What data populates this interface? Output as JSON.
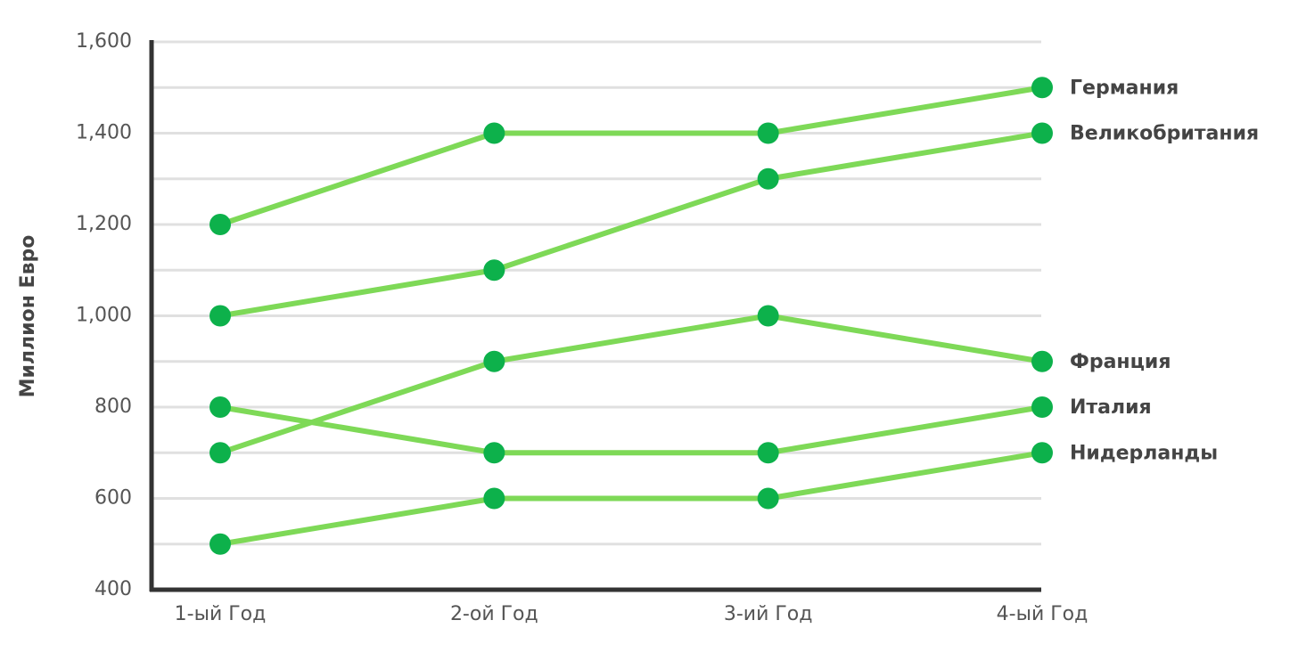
{
  "chart_data": {
    "type": "line",
    "y_label": "Миллион Евро",
    "categories": [
      "1-ый Год",
      "2-ой Год",
      "3-ий Год",
      "4-ый Год"
    ],
    "series": [
      {
        "name": "Германия",
        "values": [
          1200,
          1400,
          1400,
          1500
        ]
      },
      {
        "name": "Великобритания",
        "values": [
          1000,
          1100,
          1300,
          1400
        ]
      },
      {
        "name": "Франция",
        "values": [
          700,
          900,
          1000,
          900
        ]
      },
      {
        "name": "Италия",
        "values": [
          800,
          700,
          700,
          800
        ]
      },
      {
        "name": "Нидерланды",
        "values": [
          500,
          600,
          600,
          700
        ]
      }
    ],
    "line_color": "#7ed957",
    "marker_color": "#0db14b",
    "ylim": [
      400,
      1600
    ],
    "yticks": [
      400,
      600,
      800,
      {
        "value": 1000,
        "label": "1,000"
      },
      {
        "value": 1200,
        "label": "1,200"
      },
      {
        "value": 1400,
        "label": "1,400"
      },
      {
        "value": 1600,
        "label": "1,600"
      }
    ],
    "ygrid": [
      500,
      600,
      700,
      800,
      900,
      1000,
      1100,
      1200,
      1300,
      1400,
      1500,
      1600
    ],
    "grid": true
  }
}
